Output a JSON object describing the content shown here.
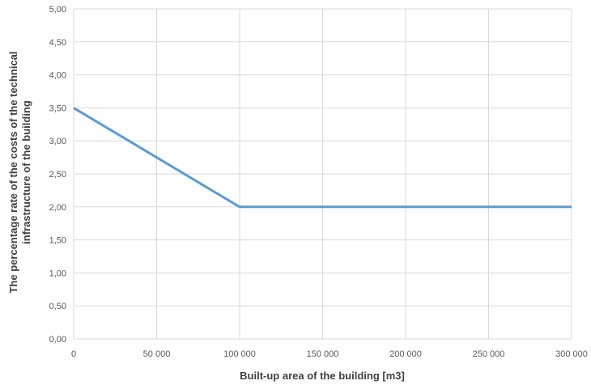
{
  "chart_data": {
    "type": "line",
    "title": "",
    "xlabel": "Built-up area of the building [m3]",
    "ylabel_lines": [
      "The percentage rate of the costs of the technical",
      "infrastructure of the building"
    ],
    "xlim": [
      0,
      300000
    ],
    "ylim": [
      0,
      5
    ],
    "x_ticks": [
      "0",
      "50 000",
      "100 000",
      "150 000",
      "200 000",
      "250 000",
      "300 000"
    ],
    "x_tick_values": [
      0,
      50000,
      100000,
      150000,
      200000,
      250000,
      300000
    ],
    "y_ticks": [
      "0,00",
      "0,50",
      "1,00",
      "1,50",
      "2,00",
      "2,50",
      "3,00",
      "3,50",
      "4,00",
      "4,50",
      "5,00"
    ],
    "y_tick_values": [
      0,
      0.5,
      1,
      1.5,
      2,
      2.5,
      3,
      3.5,
      4,
      4.5,
      5
    ],
    "grid": true,
    "legend": "none",
    "series": [
      {
        "color": "#5b9bd5",
        "x": [
          0,
          100000,
          300000
        ],
        "y": [
          3.5,
          2.0,
          2.0
        ]
      }
    ]
  }
}
